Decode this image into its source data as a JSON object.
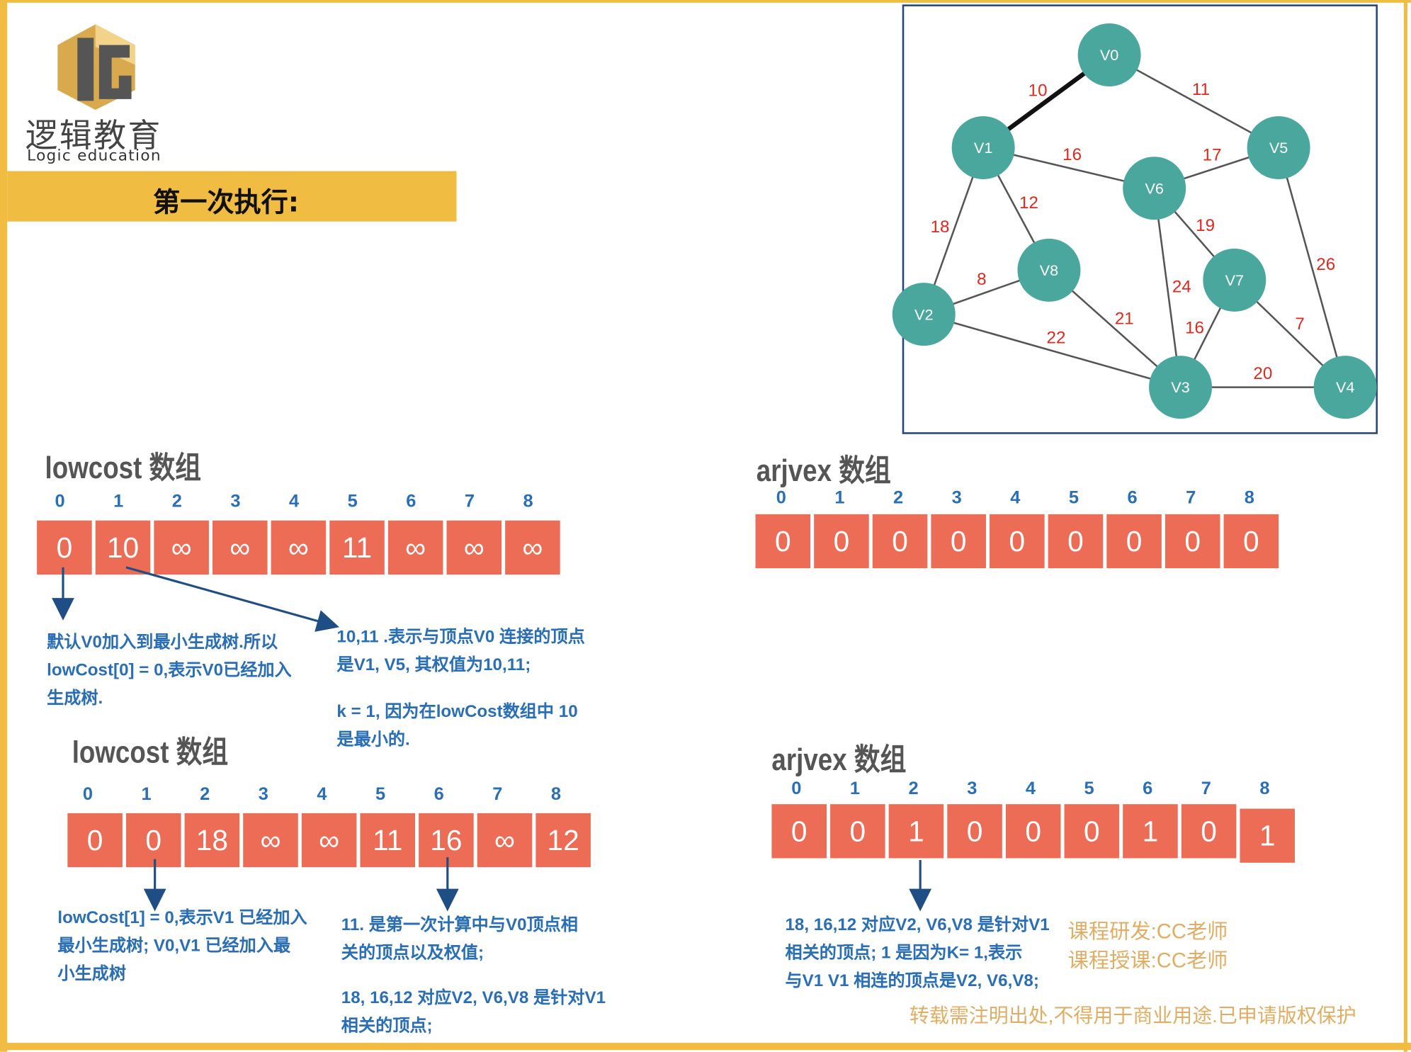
{
  "logo": {
    "cn": "逻辑教育",
    "en": "Logic education"
  },
  "heading": "第一次执行:",
  "graph": {
    "nodes": [
      "V0",
      "V1",
      "V2",
      "V3",
      "V4",
      "V5",
      "V6",
      "V7",
      "V8"
    ],
    "edges": [
      {
        "from": "V0",
        "to": "V1",
        "weight": "10",
        "highlight": true
      },
      {
        "from": "V0",
        "to": "V5",
        "weight": "11"
      },
      {
        "from": "V1",
        "to": "V6",
        "weight": "16"
      },
      {
        "from": "V5",
        "to": "V6",
        "weight": "17"
      },
      {
        "from": "V1",
        "to": "V2",
        "weight": "18"
      },
      {
        "from": "V1",
        "to": "V8",
        "weight": "12"
      },
      {
        "from": "V6",
        "to": "V7",
        "weight": "19"
      },
      {
        "from": "V5",
        "to": "V4",
        "weight": "26"
      },
      {
        "from": "V2",
        "to": "V8",
        "weight": "8"
      },
      {
        "from": "V6",
        "to": "V3",
        "weight": "24"
      },
      {
        "from": "V8",
        "to": "V3",
        "weight": "21"
      },
      {
        "from": "V7",
        "to": "V3",
        "weight": "16"
      },
      {
        "from": "V7",
        "to": "V4",
        "weight": "7"
      },
      {
        "from": "V2",
        "to": "V3",
        "weight": "22"
      },
      {
        "from": "V3",
        "to": "V4",
        "weight": "20"
      }
    ],
    "node_color": "#4aa79d",
    "weight_color": "#e0281e"
  },
  "lowcost1": {
    "title": "lowcost 数组",
    "indices": [
      "0",
      "1",
      "2",
      "3",
      "4",
      "5",
      "6",
      "7",
      "8"
    ],
    "values": [
      "0",
      "10",
      "∞",
      "∞",
      "∞",
      "11",
      "∞",
      "∞",
      "∞"
    ]
  },
  "arjvex1": {
    "title": "arjvex 数组",
    "indices": [
      "0",
      "1",
      "2",
      "3",
      "4",
      "5",
      "6",
      "7",
      "8"
    ],
    "values": [
      "0",
      "0",
      "0",
      "0",
      "0",
      "0",
      "0",
      "0",
      "0"
    ]
  },
  "lowcost2": {
    "title": "lowcost 数组",
    "indices": [
      "0",
      "1",
      "2",
      "3",
      "4",
      "5",
      "6",
      "7",
      "8"
    ],
    "values": [
      "0",
      "0",
      "18",
      "∞",
      "∞",
      "11",
      "16",
      "∞",
      "12"
    ]
  },
  "arjvex2": {
    "title": "arjvex 数组",
    "indices": [
      "0",
      "1",
      "2",
      "3",
      "4",
      "5",
      "6",
      "7",
      "8"
    ],
    "values": [
      "0",
      "0",
      "1",
      "0",
      "0",
      "0",
      "1",
      "0",
      "1"
    ]
  },
  "notes": {
    "n1": [
      "默认V0加入到最小生成树.所以",
      "lowCost[0] = 0,表示V0已经加入",
      "生成树."
    ],
    "n2": [
      "10,11 .表示与顶点V0 连接的顶点",
      "是V1, V5, 其权值为10,11;"
    ],
    "n3": [
      "k = 1, 因为在lowCost数组中 10",
      "是最小的."
    ],
    "n4": [
      "lowCost[1] = 0,表示V1 已经加入",
      "最小生成树; V0,V1 已经加入最",
      "小生成树"
    ],
    "n5": [
      "11. 是第一次计算中与V0顶点相",
      "关的顶点以及权值;"
    ],
    "n6": [
      "18, 16,12  对应V2, V6,V8 是针对V1",
      "相关的顶点;"
    ],
    "n7": [
      "18, 16,12  对应V2, V6,V8 是针对V1",
      "相关的顶点; 1 是因为K= 1,表示",
      "与V1 V1 相连的顶点是V2, V6,V8;"
    ]
  },
  "credits": [
    "课程研发:CC老师",
    "课程授课:CC老师"
  ],
  "copyright": "转载需注明出处,不得用于商业用途.已申请版权保护",
  "colors": {
    "frame": "#f0bc42",
    "cell": "#ec6c56",
    "note": "#2a6fb5",
    "arrow": "#1f4e85"
  }
}
